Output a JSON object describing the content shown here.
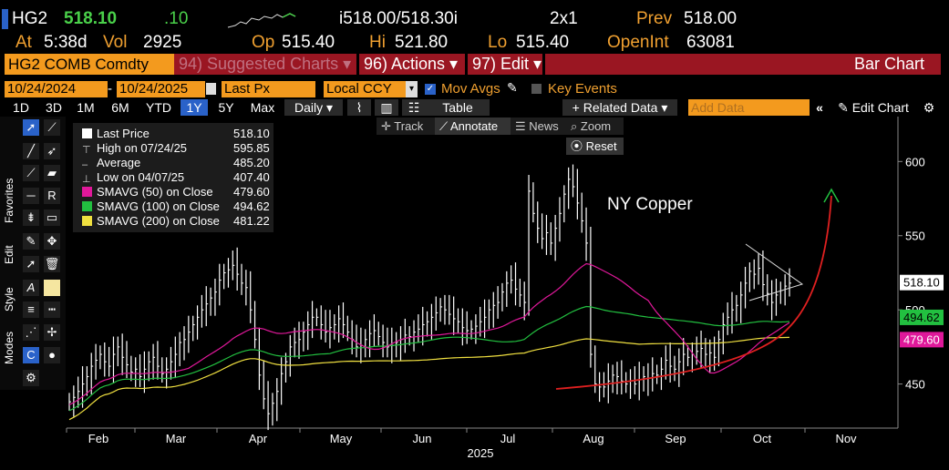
{
  "quote": {
    "ticker": "HG2",
    "last": "518.10",
    "change": ".10",
    "bid_ask": "i518.00/518.30i",
    "size": "2x1",
    "prev_label": "Prev",
    "prev": "518.00",
    "at_label": "At",
    "time": "5:38d",
    "vol_label": "Vol",
    "vol": "2925",
    "op_label": "Op",
    "op": "515.40",
    "hi_label": "Hi",
    "hi": "521.80",
    "lo_label": "Lo",
    "lo": "515.40",
    "oi_label": "OpenInt",
    "oi": "63081"
  },
  "commandbar": {
    "security": "HG2 COMB Comdty",
    "suggested": "94) Suggested Charts ▾",
    "actions": "96) Actions ▾",
    "edit": "97) Edit ▾",
    "title": "Bar Chart"
  },
  "settings": {
    "start_date": "10/24/2024",
    "end_date": "10/24/2025",
    "field": "Last Px",
    "currency": "Local CCY",
    "mov_avgs": "Mov Avgs",
    "key_events": "Key Events"
  },
  "periods": [
    "1D",
    "3D",
    "1M",
    "6M",
    "YTD",
    "1Y",
    "5Y",
    "Max"
  ],
  "selected_period": "1Y",
  "toolbar": {
    "frequency": "Daily ▾",
    "table": "Table",
    "related": "+ Related Data ▾",
    "add_data_placeholder": "Add Data",
    "edit_chart": "Edit Chart"
  },
  "chart_tools": {
    "track": "Track",
    "annotate": "Annotate",
    "news": "News",
    "zoom": "Zoom",
    "reset": "Reset"
  },
  "side_labels": [
    "Favorites",
    "Edit",
    "Style",
    "Modes"
  ],
  "legend": [
    {
      "label": "Last Price",
      "value": "518.10",
      "color": "#ffffff"
    },
    {
      "label": "High on 07/24/25",
      "value": "595.85",
      "color": ""
    },
    {
      "label": "Average",
      "value": "485.20",
      "color": ""
    },
    {
      "label": "Low on 04/07/25",
      "value": "407.40",
      "color": ""
    },
    {
      "label": "SMAVG (50)  on Close",
      "value": "479.60",
      "color": "#e0189a"
    },
    {
      "label": "SMAVG (100)  on Close",
      "value": "494.62",
      "color": "#22c040"
    },
    {
      "label": "SMAVG (200)  on Close",
      "value": "481.22",
      "color": "#f0e040"
    }
  ],
  "chart_data": {
    "type": "bar",
    "annotation": "NY Copper",
    "x_labels": [
      "Feb",
      "Mar",
      "Apr",
      "May",
      "Jun",
      "Jul",
      "Aug",
      "Sep",
      "Oct",
      "Nov"
    ],
    "year_label": "2025",
    "y_ticks": [
      450,
      500,
      550,
      600
    ],
    "ylim": [
      408,
      618
    ],
    "price_tags": [
      {
        "value": "518.10",
        "y": 518.1,
        "bg": "#ffffff",
        "fg": "#000000"
      },
      {
        "value": "494.62",
        "y": 494.62,
        "bg": "#22c040",
        "fg": "#000000"
      },
      {
        "value": "479.60",
        "y": 479.6,
        "bg": "#e0189a",
        "fg": "#ffffff"
      }
    ],
    "close_series": [
      438,
      441,
      445,
      450,
      455,
      462,
      466,
      470,
      465,
      462,
      470,
      475,
      468,
      463,
      458,
      460,
      455,
      460,
      465,
      468,
      462,
      457,
      460,
      465,
      470,
      478,
      480,
      485,
      490,
      495,
      500,
      504,
      508,
      512,
      520,
      525,
      527,
      530,
      524,
      518,
      515,
      500,
      480,
      456,
      440,
      430,
      437,
      445,
      457,
      465,
      475,
      478,
      480,
      485,
      490,
      495,
      495,
      490,
      485,
      488,
      490,
      494,
      490,
      485,
      480,
      475,
      476,
      480,
      484,
      486,
      482,
      478,
      475,
      476,
      478,
      480,
      483,
      482,
      485,
      487,
      490,
      492,
      495,
      498,
      502,
      500,
      497,
      494,
      492,
      488,
      486,
      487,
      489,
      492,
      495,
      500,
      503,
      505,
      512,
      518,
      520,
      514,
      510,
      505,
      580,
      565,
      555,
      548,
      552,
      545,
      555,
      565,
      578,
      588,
      583,
      572,
      560,
      545,
      470,
      450,
      448,
      448,
      452,
      456,
      455,
      452,
      450,
      452,
      450,
      453,
      455,
      454,
      457,
      456,
      460,
      466,
      462,
      460,
      465,
      470,
      468,
      470,
      472,
      474,
      470,
      471,
      468,
      480,
      490,
      495,
      500,
      503,
      510,
      518,
      526,
      524,
      528,
      517,
      511,
      505,
      510,
      513,
      516,
      518
    ],
    "mid_line": {
      "value": 485.2
    }
  }
}
